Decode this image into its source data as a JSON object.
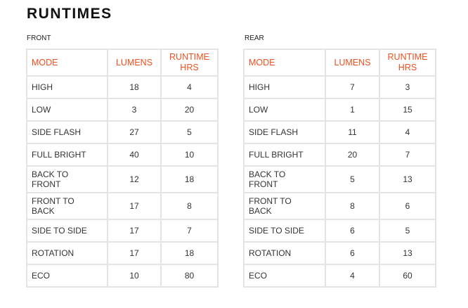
{
  "title": "RUNTIMES",
  "headers": {
    "mode": "MODE",
    "lumens": "LUMENS",
    "runtime_line1": "RUNTIME",
    "runtime_line2": "HRS"
  },
  "accent_color": "#f0501e",
  "front": {
    "label": "FRONT",
    "rows": [
      {
        "mode": "HIGH",
        "lumens": "18",
        "runtime": "4"
      },
      {
        "mode": "LOW",
        "lumens": "3",
        "runtime": "20"
      },
      {
        "mode": "SIDE FLASH",
        "lumens": "27",
        "runtime": "5"
      },
      {
        "mode": "FULL BRIGHT",
        "lumens": "40",
        "runtime": "10"
      },
      {
        "mode": "BACK TO FRONT",
        "lumens": "12",
        "runtime": "18"
      },
      {
        "mode": "FRONT TO BACK",
        "lumens": "17",
        "runtime": "8"
      },
      {
        "mode": "SIDE TO SIDE",
        "lumens": "17",
        "runtime": "7"
      },
      {
        "mode": "ROTATION",
        "lumens": "17",
        "runtime": "18"
      },
      {
        "mode": "ECO",
        "lumens": "10",
        "runtime": "80"
      }
    ]
  },
  "rear": {
    "label": "REAR",
    "rows": [
      {
        "mode": "HIGH",
        "lumens": "7",
        "runtime": "3"
      },
      {
        "mode": "LOW",
        "lumens": "1",
        "runtime": "15"
      },
      {
        "mode": "SIDE FLASH",
        "lumens": "11",
        "runtime": "4"
      },
      {
        "mode": "FULL BRIGHT",
        "lumens": "20",
        "runtime": "7"
      },
      {
        "mode": "BACK TO FRONT",
        "lumens": "5",
        "runtime": "13"
      },
      {
        "mode": "FRONT TO BACK",
        "lumens": "8",
        "runtime": "6"
      },
      {
        "mode": "SIDE TO SIDE",
        "lumens": "6",
        "runtime": "5"
      },
      {
        "mode": "ROTATION",
        "lumens": "6",
        "runtime": "13"
      },
      {
        "mode": "ECO",
        "lumens": "4",
        "runtime": "60"
      }
    ]
  }
}
